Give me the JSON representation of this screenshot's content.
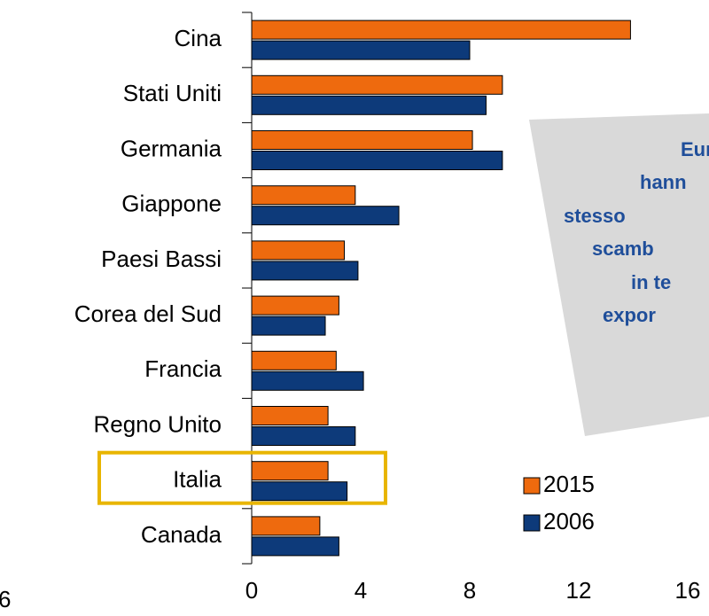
{
  "chart_data": {
    "type": "barh",
    "categories": [
      "Cina",
      "Stati Uniti",
      "Germania",
      "Giappone",
      "Paesi Bassi",
      "Corea del Sud",
      "Francia",
      "Regno Unito",
      "Italia",
      "Canada"
    ],
    "series": [
      {
        "name": "2015",
        "color": "#ee6a0e",
        "values": [
          13.9,
          9.2,
          8.1,
          3.8,
          3.4,
          3.2,
          3.1,
          2.8,
          2.8,
          2.5
        ]
      },
      {
        "name": "2006",
        "color": "#0d3a7a",
        "values": [
          8.0,
          8.6,
          9.2,
          5.4,
          3.9,
          2.7,
          4.1,
          3.8,
          3.5,
          3.2
        ]
      }
    ],
    "xlim": [
      0,
      16
    ],
    "xticks": [
      0,
      4,
      8,
      12,
      16
    ],
    "highlight_category": "Italia",
    "highlight_color": "#e8b500",
    "note_lines": [
      "Euro",
      "hann",
      "stesso",
      "scamb",
      "in te",
      "expor"
    ],
    "annotations": [
      "6"
    ]
  }
}
